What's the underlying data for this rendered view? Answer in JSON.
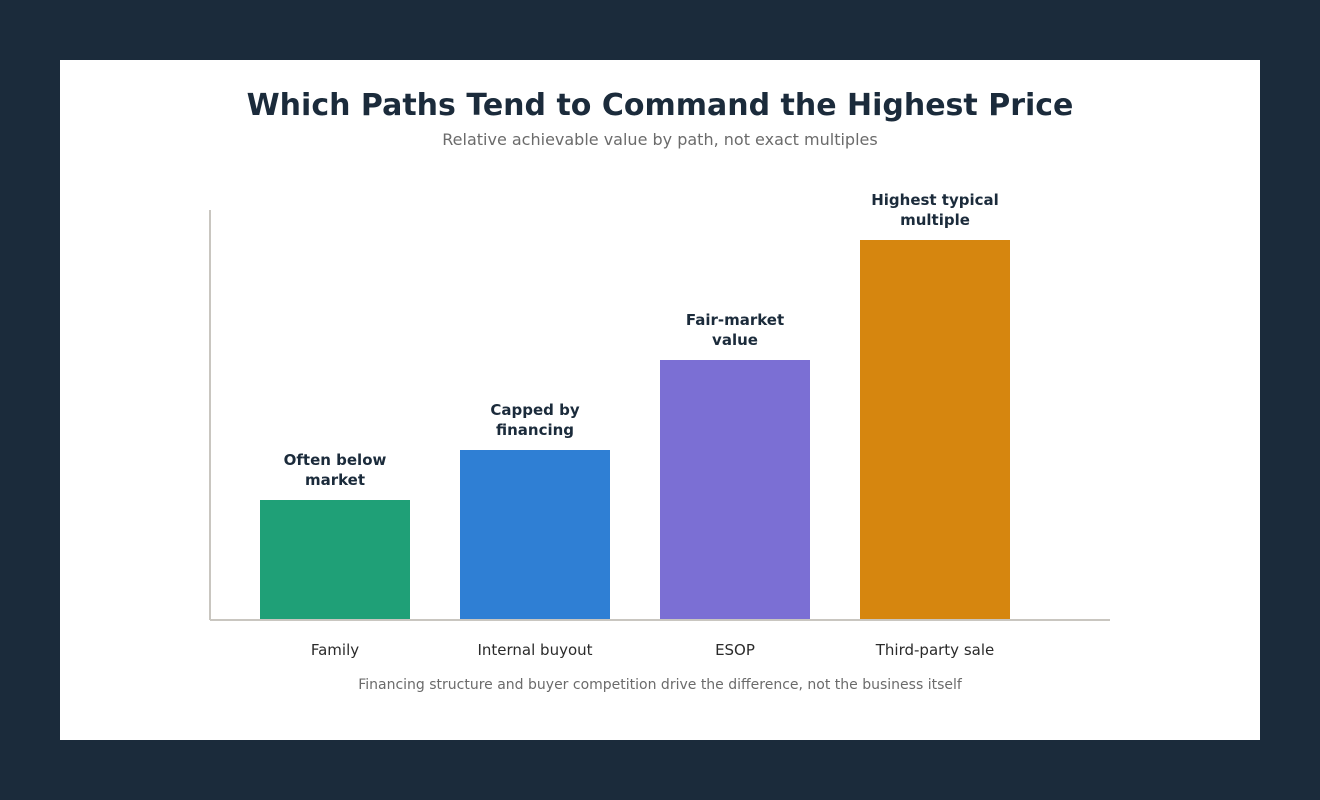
{
  "title": "Which Paths Tend to Command the Highest Price",
  "subtitle": "Relative achievable value by path, not exact multiples",
  "footnote": "Financing structure and buyer competition drive the difference, not the business itself",
  "chart_data": {
    "type": "bar",
    "title": "Which Paths Tend to Command the Highest Price",
    "subtitle": "Relative achievable value by path, not exact multiples",
    "xlabel": "",
    "ylabel": "",
    "categories": [
      "Family",
      "Internal buyout",
      "ESOP",
      "Third-party sale"
    ],
    "values": [
      30,
      42.5,
      65,
      95
    ],
    "ylim": [
      0,
      102.5
    ],
    "data_labels": [
      [
        "Often below",
        "market"
      ],
      [
        "Capped by",
        "financing"
      ],
      [
        "Fair-market",
        "value"
      ],
      [
        "Highest typical",
        "multiple"
      ]
    ],
    "colors": [
      "#1fa077",
      "#2f7fd4",
      "#7b6fd4",
      "#d6860f"
    ],
    "grid": false,
    "legend": "none",
    "annotation": "Financing structure and buyer competition drive the difference, not the business itself"
  }
}
